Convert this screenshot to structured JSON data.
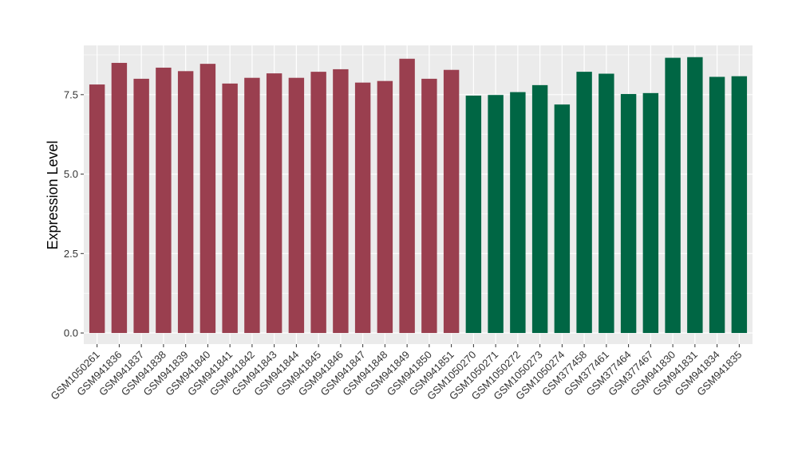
{
  "chart_data": {
    "type": "bar",
    "ylabel": "Expression Level",
    "xlabel": "",
    "ylim": [
      -0.35,
      9.05
    ],
    "yticks": [
      0.0,
      2.5,
      5.0,
      7.5
    ],
    "ytick_labels": [
      "0.0",
      "2.5",
      "5.0",
      "7.5"
    ],
    "grid": true,
    "legend": "none",
    "colors": {
      "group1": "#9a3f4f",
      "group2": "#006644",
      "panel": "#ebebeb",
      "grid": "#ffffff"
    },
    "categories": [
      "GSM1050261",
      "GSM941836",
      "GSM941837",
      "GSM941838",
      "GSM941839",
      "GSM941840",
      "GSM941841",
      "GSM941842",
      "GSM941843",
      "GSM941844",
      "GSM941845",
      "GSM941846",
      "GSM941847",
      "GSM941848",
      "GSM941849",
      "GSM941850",
      "GSM941851",
      "GSM1050270",
      "GSM1050271",
      "GSM1050272",
      "GSM1050273",
      "GSM1050274",
      "GSM377458",
      "GSM377461",
      "GSM377464",
      "GSM377467",
      "GSM941830",
      "GSM941831",
      "GSM941834",
      "GSM941835"
    ],
    "values": [
      7.82,
      8.5,
      8.0,
      8.35,
      8.24,
      8.47,
      7.85,
      8.03,
      8.17,
      8.03,
      8.22,
      8.3,
      7.88,
      7.93,
      8.63,
      8.0,
      8.28,
      7.47,
      7.49,
      7.58,
      7.8,
      7.19,
      8.22,
      8.16,
      7.52,
      7.55,
      8.66,
      8.68,
      8.06,
      8.08
    ],
    "groups": [
      1,
      1,
      1,
      1,
      1,
      1,
      1,
      1,
      1,
      1,
      1,
      1,
      1,
      1,
      1,
      1,
      1,
      2,
      2,
      2,
      2,
      2,
      2,
      2,
      2,
      2,
      2,
      2,
      2,
      2
    ]
  }
}
